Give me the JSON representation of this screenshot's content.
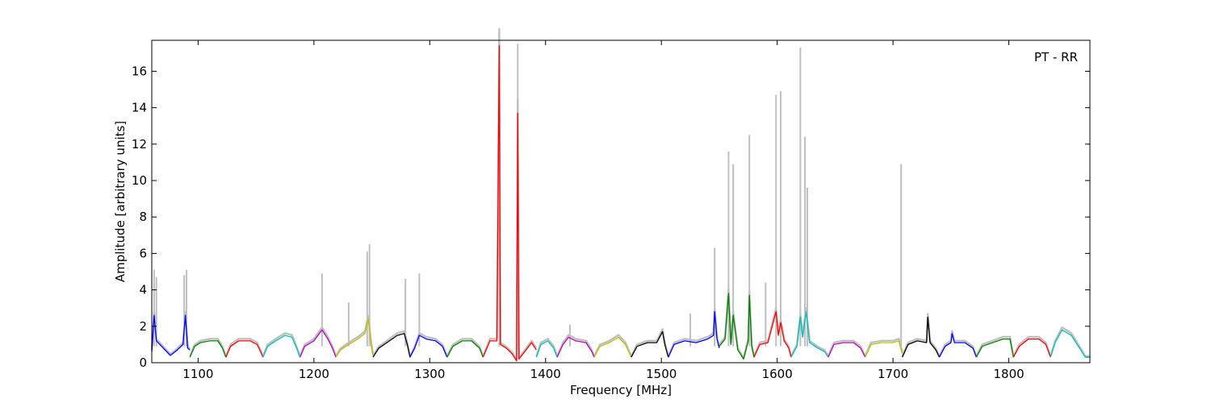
{
  "chart_data": {
    "type": "line",
    "annotation": "PT - RR",
    "xlabel": "Frequency [MHz]",
    "ylabel": "Amplitude [arbitrary units]",
    "xlim": [
      1060,
      1870
    ],
    "ylim": [
      0,
      17.7
    ],
    "x_ticks": [
      1100,
      1200,
      1300,
      1400,
      1500,
      1600,
      1700,
      1800
    ],
    "y_ticks": [
      0,
      2,
      4,
      6,
      8,
      10,
      12,
      14,
      16
    ],
    "grid": false,
    "legend": "none",
    "background_series": {
      "color": "#bfbfbf",
      "peaks": [
        {
          "x": 1062,
          "y": 5.1
        },
        {
          "x": 1064,
          "y": 4.7
        },
        {
          "x": 1088,
          "y": 4.8
        },
        {
          "x": 1090,
          "y": 5.1
        },
        {
          "x": 1207,
          "y": 4.9
        },
        {
          "x": 1230,
          "y": 3.3
        },
        {
          "x": 1246,
          "y": 6.1
        },
        {
          "x": 1248,
          "y": 6.5
        },
        {
          "x": 1279,
          "y": 4.6
        },
        {
          "x": 1291,
          "y": 4.9
        },
        {
          "x": 1360,
          "y": 17.7
        },
        {
          "x": 1376,
          "y": 17.5
        },
        {
          "x": 1421,
          "y": 2.1
        },
        {
          "x": 1525,
          "y": 2.7
        },
        {
          "x": 1546,
          "y": 6.3
        },
        {
          "x": 1558,
          "y": 11.6
        },
        {
          "x": 1562,
          "y": 10.9
        },
        {
          "x": 1576,
          "y": 12.5
        },
        {
          "x": 1590,
          "y": 4.4
        },
        {
          "x": 1599,
          "y": 14.7
        },
        {
          "x": 1603,
          "y": 14.9
        },
        {
          "x": 1620,
          "y": 17.3
        },
        {
          "x": 1624,
          "y": 12.4
        },
        {
          "x": 1626,
          "y": 9.6
        },
        {
          "x": 1707,
          "y": 10.9
        }
      ]
    },
    "series": [
      {
        "color": "#0000ff",
        "band": [
          1060,
          1093
        ],
        "points": [
          [
            1060,
            0.6
          ],
          [
            1062,
            2.6
          ],
          [
            1064,
            1.2
          ],
          [
            1070,
            0.8
          ],
          [
            1076,
            0.4
          ],
          [
            1082,
            0.7
          ],
          [
            1087,
            1.0
          ],
          [
            1089,
            2.6
          ],
          [
            1091,
            0.8
          ],
          [
            1093,
            0.7
          ]
        ]
      },
      {
        "color": "#008000",
        "band": [
          1093,
          1124
        ],
        "points": [
          [
            1093,
            0.3
          ],
          [
            1097,
            0.9
          ],
          [
            1102,
            1.1
          ],
          [
            1110,
            1.2
          ],
          [
            1117,
            1.2
          ],
          [
            1121,
            0.8
          ],
          [
            1124,
            0.3
          ]
        ]
      },
      {
        "color": "#ff0000",
        "band": [
          1124,
          1156
        ],
        "points": [
          [
            1124,
            0.3
          ],
          [
            1128,
            0.9
          ],
          [
            1135,
            1.2
          ],
          [
            1145,
            1.2
          ],
          [
            1151,
            1.0
          ],
          [
            1154,
            0.6
          ],
          [
            1156,
            0.3
          ]
        ]
      },
      {
        "color": "#00bfbf",
        "band": [
          1156,
          1188
        ],
        "points": [
          [
            1156,
            0.3
          ],
          [
            1160,
            0.9
          ],
          [
            1167,
            1.2
          ],
          [
            1175,
            1.5
          ],
          [
            1181,
            1.4
          ],
          [
            1185,
            0.8
          ],
          [
            1188,
            0.3
          ]
        ]
      },
      {
        "color": "#bf00bf",
        "band": [
          1188,
          1219
        ],
        "points": [
          [
            1188,
            0.3
          ],
          [
            1192,
            0.9
          ],
          [
            1200,
            1.2
          ],
          [
            1207,
            1.8
          ],
          [
            1212,
            1.3
          ],
          [
            1216,
            0.8
          ],
          [
            1219,
            0.3
          ]
        ]
      },
      {
        "color": "#bfbf00",
        "band": [
          1219,
          1251
        ],
        "points": [
          [
            1219,
            0.3
          ],
          [
            1223,
            0.7
          ],
          [
            1230,
            1.0
          ],
          [
            1238,
            1.3
          ],
          [
            1244,
            1.6
          ],
          [
            1247,
            2.4
          ],
          [
            1249,
            1.2
          ],
          [
            1251,
            0.4
          ]
        ]
      },
      {
        "color": "#000000",
        "band": [
          1251,
          1283
        ],
        "points": [
          [
            1251,
            0.3
          ],
          [
            1256,
            0.8
          ],
          [
            1263,
            1.1
          ],
          [
            1272,
            1.5
          ],
          [
            1278,
            1.6
          ],
          [
            1281,
            0.9
          ],
          [
            1283,
            0.3
          ]
        ]
      },
      {
        "color": "#0000ff",
        "band": [
          1283,
          1315
        ],
        "points": [
          [
            1283,
            0.3
          ],
          [
            1287,
            0.8
          ],
          [
            1291,
            1.5
          ],
          [
            1297,
            1.3
          ],
          [
            1305,
            1.2
          ],
          [
            1311,
            0.9
          ],
          [
            1315,
            0.3
          ]
        ]
      },
      {
        "color": "#008000",
        "band": [
          1315,
          1346
        ],
        "points": [
          [
            1315,
            0.3
          ],
          [
            1320,
            0.9
          ],
          [
            1328,
            1.2
          ],
          [
            1336,
            1.2
          ],
          [
            1343,
            0.8
          ],
          [
            1346,
            0.3
          ]
        ]
      },
      {
        "color": "#ff0000",
        "band": [
          1346,
          1392
        ],
        "points": [
          [
            1346,
            0.3
          ],
          [
            1352,
            1.2
          ],
          [
            1358,
            1.2
          ],
          [
            1360,
            17.4
          ],
          [
            1361,
            1.0
          ],
          [
            1366,
            0.8
          ],
          [
            1371,
            0.5
          ],
          [
            1375,
            0.1
          ],
          [
            1376,
            13.7
          ],
          [
            1377,
            0.2
          ],
          [
            1382,
            0.6
          ],
          [
            1388,
            1.1
          ],
          [
            1392,
            0.7
          ]
        ]
      },
      {
        "color": "#00bfbf",
        "band": [
          1392,
          1410
        ],
        "points": [
          [
            1392,
            0.3
          ],
          [
            1396,
            1.0
          ],
          [
            1402,
            1.2
          ],
          [
            1407,
            0.8
          ],
          [
            1410,
            0.3
          ]
        ]
      },
      {
        "color": "#bf00bf",
        "band": [
          1410,
          1442
        ],
        "points": [
          [
            1410,
            0.3
          ],
          [
            1415,
            1.0
          ],
          [
            1420,
            1.4
          ],
          [
            1426,
            1.2
          ],
          [
            1435,
            1.1
          ],
          [
            1440,
            0.6
          ],
          [
            1442,
            0.3
          ]
        ]
      },
      {
        "color": "#bfbf00",
        "band": [
          1442,
          1474
        ],
        "points": [
          [
            1442,
            0.3
          ],
          [
            1447,
            0.9
          ],
          [
            1455,
            1.1
          ],
          [
            1463,
            1.4
          ],
          [
            1469,
            1.0
          ],
          [
            1474,
            0.3
          ]
        ]
      },
      {
        "color": "#000000",
        "band": [
          1474,
          1506
        ],
        "points": [
          [
            1474,
            0.3
          ],
          [
            1479,
            0.9
          ],
          [
            1488,
            1.1
          ],
          [
            1496,
            1.1
          ],
          [
            1501,
            1.7
          ],
          [
            1503,
            1.0
          ],
          [
            1506,
            0.3
          ]
        ]
      },
      {
        "color": "#0000ff",
        "band": [
          1506,
          1550
        ],
        "points": [
          [
            1506,
            0.3
          ],
          [
            1511,
            1.0
          ],
          [
            1520,
            1.2
          ],
          [
            1530,
            1.1
          ],
          [
            1540,
            1.3
          ],
          [
            1545,
            1.5
          ],
          [
            1546,
            2.8
          ],
          [
            1548,
            1.3
          ],
          [
            1550,
            0.8
          ]
        ]
      },
      {
        "color": "#008000",
        "band": [
          1550,
          1580
        ],
        "points": [
          [
            1550,
            0.9
          ],
          [
            1555,
            1.3
          ],
          [
            1558,
            3.8
          ],
          [
            1560,
            1.0
          ],
          [
            1562,
            2.6
          ],
          [
            1566,
            0.7
          ],
          [
            1571,
            0.2
          ],
          [
            1575,
            1.2
          ],
          [
            1576,
            3.7
          ],
          [
            1578,
            0.9
          ],
          [
            1580,
            0.3
          ]
        ]
      },
      {
        "color": "#ff0000",
        "band": [
          1580,
          1612
        ],
        "points": [
          [
            1580,
            0.3
          ],
          [
            1585,
            1.0
          ],
          [
            1592,
            1.1
          ],
          [
            1599,
            2.8
          ],
          [
            1601,
            1.5
          ],
          [
            1603,
            2.2
          ],
          [
            1606,
            1.2
          ],
          [
            1610,
            0.8
          ],
          [
            1612,
            0.3
          ]
        ]
      },
      {
        "color": "#00bfbf",
        "band": [
          1612,
          1644
        ],
        "points": [
          [
            1612,
            0.3
          ],
          [
            1617,
            0.9
          ],
          [
            1620,
            2.5
          ],
          [
            1622,
            1.4
          ],
          [
            1625,
            2.8
          ],
          [
            1628,
            1.1
          ],
          [
            1635,
            0.8
          ],
          [
            1641,
            0.6
          ],
          [
            1644,
            0.3
          ]
        ]
      },
      {
        "color": "#bf00bf",
        "band": [
          1644,
          1676
        ],
        "points": [
          [
            1644,
            0.3
          ],
          [
            1649,
            1.0
          ],
          [
            1657,
            1.1
          ],
          [
            1666,
            1.1
          ],
          [
            1672,
            0.8
          ],
          [
            1676,
            0.3
          ]
        ]
      },
      {
        "color": "#bfbf00",
        "band": [
          1676,
          1708
        ],
        "points": [
          [
            1676,
            0.3
          ],
          [
            1681,
            1.0
          ],
          [
            1690,
            1.1
          ],
          [
            1700,
            1.1
          ],
          [
            1705,
            1.2
          ],
          [
            1708,
            0.5
          ]
        ]
      },
      {
        "color": "#000000",
        "band": [
          1708,
          1740
        ],
        "points": [
          [
            1708,
            0.3
          ],
          [
            1713,
            1.0
          ],
          [
            1721,
            1.2
          ],
          [
            1729,
            1.1
          ],
          [
            1730,
            2.5
          ],
          [
            1732,
            1.1
          ],
          [
            1737,
            0.7
          ],
          [
            1740,
            0.3
          ]
        ]
      },
      {
        "color": "#0000ff",
        "band": [
          1740,
          1772
        ],
        "points": [
          [
            1740,
            0.3
          ],
          [
            1745,
            0.9
          ],
          [
            1750,
            1.1
          ],
          [
            1751,
            1.6
          ],
          [
            1753,
            1.1
          ],
          [
            1762,
            1.1
          ],
          [
            1769,
            0.8
          ],
          [
            1772,
            0.3
          ]
        ]
      },
      {
        "color": "#008000",
        "band": [
          1772,
          1804
        ],
        "points": [
          [
            1772,
            0.3
          ],
          [
            1777,
            0.9
          ],
          [
            1786,
            1.1
          ],
          [
            1795,
            1.3
          ],
          [
            1801,
            1.3
          ],
          [
            1804,
            0.3
          ]
        ]
      },
      {
        "color": "#ff0000",
        "band": [
          1804,
          1836
        ],
        "points": [
          [
            1804,
            0.3
          ],
          [
            1809,
            0.9
          ],
          [
            1817,
            1.3
          ],
          [
            1826,
            1.3
          ],
          [
            1832,
            1.0
          ],
          [
            1836,
            0.3
          ]
        ]
      },
      {
        "color": "#00bfbf",
        "band": [
          1836,
          1870
        ],
        "points": [
          [
            1836,
            0.3
          ],
          [
            1840,
            1.1
          ],
          [
            1846,
            1.8
          ],
          [
            1854,
            1.5
          ],
          [
            1860,
            0.9
          ],
          [
            1866,
            0.3
          ],
          [
            1870,
            0.3
          ]
        ]
      }
    ]
  }
}
